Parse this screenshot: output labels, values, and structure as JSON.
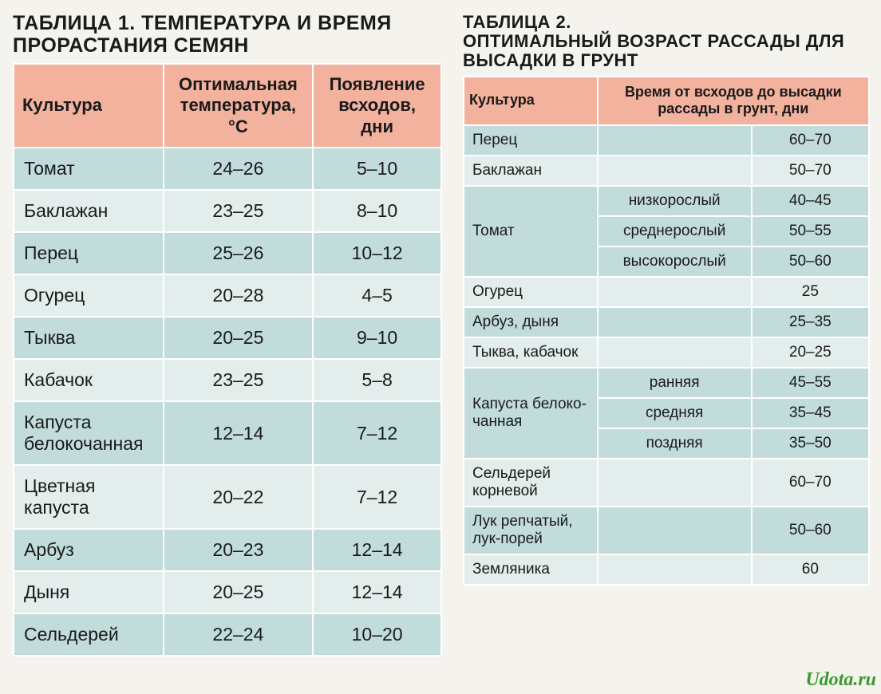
{
  "colors": {
    "header_bg": "#f2b29e",
    "row_even": "#c1dcdb",
    "row_odd": "#e2edec",
    "page_bg": "#f5f3ee",
    "text": "#1a1a1a",
    "border": "#ffffff",
    "watermark": "#3a9a2f"
  },
  "table1": {
    "title": "ТАБЛИЦА 1. ТЕМПЕРАТУРА И ВРЕМЯ ПРОРАСТАНИЯ СЕМЯН",
    "title_fontsize": 25,
    "header_fontsize": 22,
    "cell_fontsize": 23,
    "columns": [
      "Культура",
      "Оптимальная температура, °C",
      "Появление всходов, дни"
    ],
    "col_align": [
      "left",
      "center",
      "center"
    ],
    "rows": [
      [
        "Томат",
        "24–26",
        "5–10"
      ],
      [
        "Баклажан",
        "23–25",
        "8–10"
      ],
      [
        "Перец",
        "25–26",
        "10–12"
      ],
      [
        "Огурец",
        "20–28",
        "4–5"
      ],
      [
        "Тыква",
        "20–25",
        "9–10"
      ],
      [
        "Кабачок",
        "23–25",
        "5–8"
      ],
      [
        "Капуста белокочан­ная",
        "12–14",
        "7–12"
      ],
      [
        "Цветная капуста",
        "20–22",
        "7–12"
      ],
      [
        "Арбуз",
        "20–23",
        "12–14"
      ],
      [
        "Дыня",
        "20–25",
        "12–14"
      ],
      [
        "Сельдерей",
        "22–24",
        "10–20"
      ]
    ]
  },
  "table2": {
    "title": "ТАБЛИЦА 2.\nОПТИМАЛЬНЫЙ ВОЗРАСТ РАССАДЫ ДЛЯ ВЫСАДКИ В ГРУНТ",
    "title_fontsize": 22,
    "header_fontsize": 18,
    "cell_fontsize": 19,
    "columns": [
      "Культура",
      "Время от всходов до высадки рассады в грунт, дни"
    ],
    "col_align": [
      "left",
      "center",
      "center"
    ],
    "groups": [
      {
        "crop": "Перец",
        "subs": [
          [
            "",
            "60–70"
          ]
        ]
      },
      {
        "crop": "Баклажан",
        "subs": [
          [
            "",
            "50–70"
          ]
        ]
      },
      {
        "crop": "Томат",
        "subs": [
          [
            "низкорослый",
            "40–45"
          ],
          [
            "среднерослый",
            "50–55"
          ],
          [
            "высокорослый",
            "50–60"
          ]
        ]
      },
      {
        "crop": "Огурец",
        "subs": [
          [
            "",
            "25"
          ]
        ]
      },
      {
        "crop": "Арбуз, дыня",
        "subs": [
          [
            "",
            "25–35"
          ]
        ]
      },
      {
        "crop": "Тыква, кабачок",
        "subs": [
          [
            "",
            "20–25"
          ]
        ]
      },
      {
        "crop": "Капуста белоко­чанная",
        "subs": [
          [
            "ранняя",
            "45–55"
          ],
          [
            "средняя",
            "35–45"
          ],
          [
            "поздняя",
            "35–50"
          ]
        ]
      },
      {
        "crop": "Сельдерей корневой",
        "subs": [
          [
            "",
            "60–70"
          ]
        ]
      },
      {
        "crop": "Лук репчатый, лук-порей",
        "subs": [
          [
            "",
            "50–60"
          ]
        ]
      },
      {
        "crop": "Земляника",
        "subs": [
          [
            "",
            "60"
          ]
        ]
      }
    ]
  },
  "watermark": "Udota.ru",
  "page_number": ""
}
